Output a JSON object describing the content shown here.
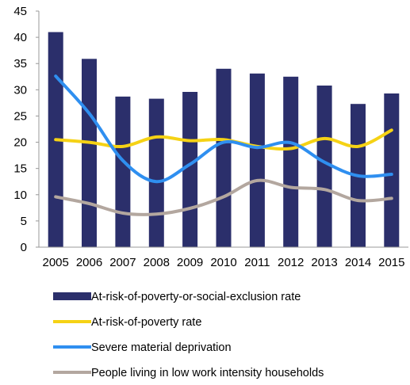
{
  "chart_data": {
    "type": "bar",
    "categories": [
      "2005",
      "2006",
      "2007",
      "2008",
      "2009",
      "2010",
      "2011",
      "2012",
      "2013",
      "2014",
      "2015"
    ],
    "ylim": [
      0,
      45
    ],
    "yticks": [
      0,
      5,
      10,
      15,
      20,
      25,
      30,
      35,
      40,
      45
    ],
    "grid": false,
    "legend_position": "bottom",
    "series": [
      {
        "name": "At-risk-of-poverty-or-social-exclusion rate",
        "type": "bar",
        "color": "#2b2f6b",
        "values": [
          41.0,
          35.9,
          28.7,
          28.3,
          29.6,
          34.0,
          33.1,
          32.5,
          30.8,
          27.3,
          29.3
        ]
      },
      {
        "name": "At-risk-of-poverty rate",
        "type": "line",
        "color": "#f5d215",
        "values": [
          20.5,
          20.0,
          19.2,
          21.0,
          20.3,
          20.5,
          19.2,
          18.8,
          20.7,
          19.2,
          22.3
        ]
      },
      {
        "name": "Severe material deprivation",
        "type": "line",
        "color": "#2f8ff0",
        "values": [
          32.6,
          25.5,
          16.5,
          12.5,
          15.8,
          20.0,
          19.0,
          19.9,
          16.2,
          13.6,
          13.9
        ]
      },
      {
        "name": "People living in low work intensity households",
        "type": "line",
        "color": "#b3a79f",
        "values": [
          9.6,
          8.3,
          6.5,
          6.3,
          7.4,
          9.6,
          12.7,
          11.4,
          11.0,
          8.9,
          9.3
        ]
      }
    ]
  }
}
